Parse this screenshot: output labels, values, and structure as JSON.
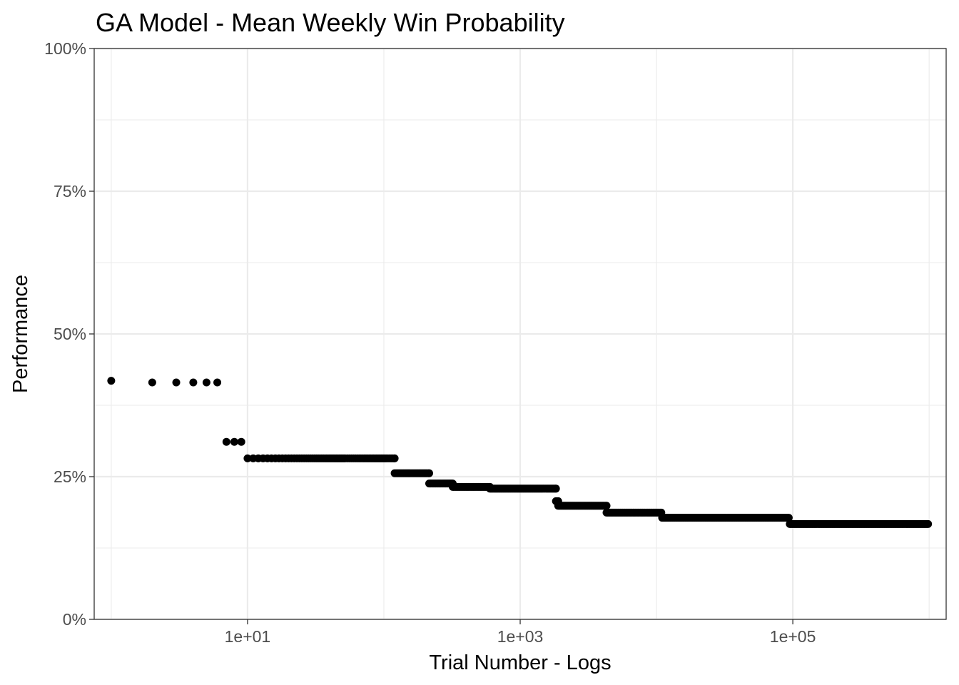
{
  "chart_data": {
    "type": "scatter",
    "title": "GA Model - Mean Weekly Win Probability",
    "xlabel": "Trial Number - Logs",
    "ylabel": "Performance",
    "x_scale": "log10",
    "xlim": [
      0.75,
      1333000
    ],
    "ylim": [
      0,
      1
    ],
    "x_ticks": [
      10,
      1000,
      100000
    ],
    "x_tick_labels": [
      "1e+01",
      "1e+03",
      "1e+05"
    ],
    "y_ticks": [
      0,
      0.25,
      0.5,
      0.75,
      1.0
    ],
    "y_tick_labels": [
      "0%",
      "25%",
      "50%",
      "75%",
      "100%"
    ],
    "grid": true,
    "point_color": "#000000",
    "points": [
      {
        "x": 1,
        "y": 0.418
      },
      {
        "x": 2,
        "y": 0.415
      },
      {
        "x": 3,
        "y": 0.415
      },
      {
        "x": 4,
        "y": 0.415
      },
      {
        "x": 5,
        "y": 0.415
      },
      {
        "x": 6,
        "y": 0.415
      },
      {
        "x": 7,
        "y": 0.311
      },
      {
        "x": 8,
        "y": 0.311
      },
      {
        "x": 9,
        "y": 0.311
      }
    ],
    "segments": [
      {
        "x_start": 10,
        "x_end": 120,
        "y": 0.282
      },
      {
        "x_start": 120,
        "x_end": 215,
        "y": 0.256
      },
      {
        "x_start": 215,
        "x_end": 320,
        "y": 0.238
      },
      {
        "x_start": 320,
        "x_end": 600,
        "y": 0.232
      },
      {
        "x_start": 600,
        "x_end": 1830,
        "y": 0.229
      },
      {
        "x_start": 1830,
        "x_end": 1900,
        "y": 0.207
      },
      {
        "x_start": 1900,
        "x_end": 4300,
        "y": 0.199
      },
      {
        "x_start": 4300,
        "x_end": 11000,
        "y": 0.187
      },
      {
        "x_start": 11000,
        "x_end": 95000,
        "y": 0.178
      },
      {
        "x_start": 95000,
        "x_end": 1000000,
        "y": 0.167
      }
    ]
  }
}
